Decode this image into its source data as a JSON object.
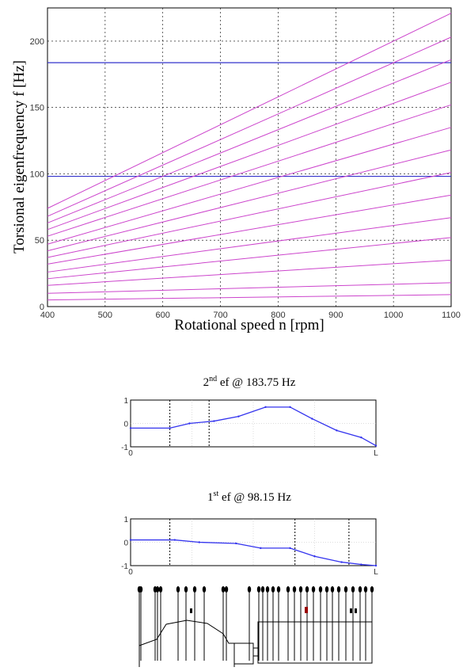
{
  "chart_data": [
    {
      "type": "line",
      "title": "",
      "xlabel": "Rotational speed n [rpm]",
      "ylabel": "Torsional eigenfrequency f [Hz]",
      "xlim": [
        400,
        1100
      ],
      "ylim": [
        0,
        225
      ],
      "x_ticks": [
        "400",
        "500",
        "600",
        "700",
        "800",
        "900",
        "1000",
        "1100"
      ],
      "y_ticks": [
        "0",
        "50",
        "100",
        "150",
        "200"
      ],
      "grid": true,
      "x": [
        400,
        1100
      ],
      "series": [
        {
          "values": [
            5,
            9
          ]
        },
        {
          "values": [
            10,
            18
          ]
        },
        {
          "values": [
            16,
            35
          ]
        },
        {
          "values": [
            21,
            52
          ]
        },
        {
          "values": [
            26,
            67
          ]
        },
        {
          "values": [
            32,
            84
          ]
        },
        {
          "values": [
            37,
            101
          ]
        },
        {
          "values": [
            42,
            118
          ]
        },
        {
          "values": [
            47,
            135
          ]
        },
        {
          "values": [
            53,
            152
          ]
        },
        {
          "values": [
            58,
            169
          ]
        },
        {
          "values": [
            63,
            186
          ]
        },
        {
          "values": [
            68,
            203
          ]
        },
        {
          "values": [
            74,
            221
          ]
        }
      ],
      "hlines": [
        183.75,
        98.15
      ],
      "colors": {
        "lines": "#cc44cc",
        "hlines": "#3333cc",
        "grid": "#000000"
      }
    },
    {
      "type": "line",
      "title": "2nd ef @ 183.75 Hz",
      "title_parts": {
        "num": "2",
        "sup": "nd",
        "rest": " ef @ 183.75 Hz"
      },
      "xlim": [
        0,
        1
      ],
      "ylim": [
        -1,
        1
      ],
      "x_ticks": [
        "0",
        "L"
      ],
      "y_ticks": [
        "1",
        "0",
        "-1"
      ],
      "x": [
        0,
        0.16,
        0.24,
        0.34,
        0.44,
        0.55,
        0.65,
        0.74,
        0.84,
        0.94,
        1.0
      ],
      "values": [
        -0.2,
        -0.2,
        0.0,
        0.1,
        0.3,
        0.7,
        0.7,
        0.2,
        -0.3,
        -0.6,
        -0.95
      ],
      "colors": {
        "line": "#3333ee"
      }
    },
    {
      "type": "line",
      "title": "1st ef @ 98.15 Hz",
      "title_parts": {
        "num": "1",
        "sup": "st",
        "rest": " ef @ 98.15 Hz"
      },
      "xlim": [
        0,
        1
      ],
      "ylim": [
        -1,
        1
      ],
      "x_ticks": [
        "0",
        "L"
      ],
      "y_ticks": [
        "1",
        "0",
        "-1"
      ],
      "x": [
        0,
        0.18,
        0.28,
        0.43,
        0.53,
        0.65,
        0.75,
        0.86,
        0.94,
        1.0
      ],
      "values": [
        0.1,
        0.1,
        0.0,
        -0.05,
        -0.25,
        -0.25,
        -0.6,
        -0.85,
        -0.95,
        -1.0
      ],
      "colors": {
        "line": "#3333ee"
      }
    }
  ]
}
